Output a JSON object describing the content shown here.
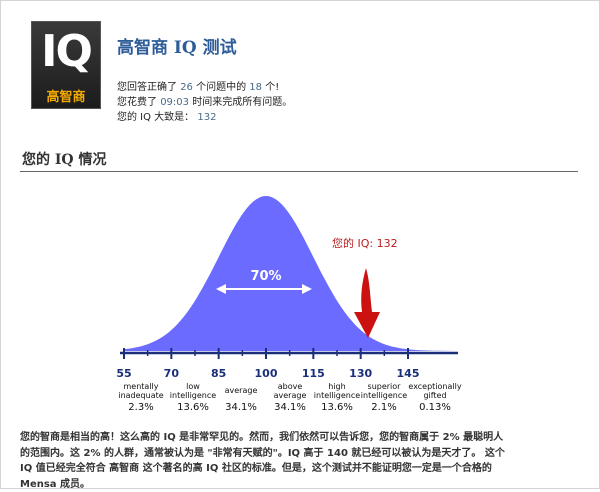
{
  "logo": {
    "text": "IQ",
    "caption": "高智商"
  },
  "header": {
    "title": "高智商 IQ 测试"
  },
  "result": {
    "answered_prefix": "您回答正确了",
    "total_questions": "26",
    "answered_middle": "个问题中的",
    "correct_count": "18",
    "answered_suffix": "个!",
    "time_prefix": "您花费了",
    "time_taken": "09:03",
    "time_suffix": "时间来完成所有问题。",
    "iq_prefix": "您的 IQ 大致是：",
    "iq_value": "132"
  },
  "section": {
    "title": "您的 IQ 情况"
  },
  "chart_data": {
    "type": "area",
    "description_free": true,
    "x_ticks": [
      "55",
      "70",
      "85",
      "100",
      "115",
      "130",
      "145"
    ],
    "center_label": "70%",
    "marker_label": "您的 IQ: 132",
    "marker_value": 132,
    "categories": [
      {
        "label_lines": [
          "mentally",
          "inadequate"
        ],
        "percent": "2.3%"
      },
      {
        "label_lines": [
          "low",
          "intelligence"
        ],
        "percent": "13.6%"
      },
      {
        "label_lines": [
          "average"
        ],
        "percent": "34.1%"
      },
      {
        "label_lines": [
          "above",
          "average"
        ],
        "percent": "34.1%"
      },
      {
        "label_lines": [
          "high",
          "intelligence"
        ],
        "percent": "13.6%"
      },
      {
        "label_lines": [
          "superior",
          "intelligence"
        ],
        "percent": "2.1%"
      },
      {
        "label_lines": [
          "exceptionally",
          "gifted"
        ],
        "percent": "0.13%"
      }
    ],
    "colors": {
      "curve": "#6b6bff",
      "axis": "#1a2e7a",
      "arrow": "#cc1111",
      "label": "#b81c1c"
    }
  },
  "summary": {
    "line1": "您的智商是相当的高！这么高的 IQ 是非常罕见的。然而，我们依然可以告诉您，您的智商属于 2% 最聪明人",
    "line2": "的范围内。这 2% 的人群，通常被认为是 \"非常有天赋的\"。IQ 高于 140 就已经可以被认为是天才了。 这个",
    "line3": "IQ 值已经完全符合 高智商 这个著名的高 IQ 社区的标准。但是，这个测试并不能证明您一定是一个合格的",
    "line4": "Mensa 成员。"
  }
}
